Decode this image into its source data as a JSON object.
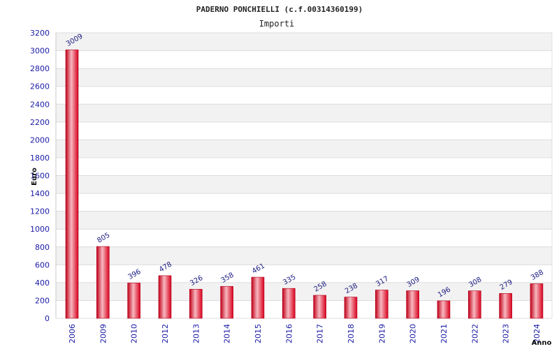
{
  "chart_data": {
    "type": "bar",
    "title": "PADERNO PONCHIELLI (c.f.00314360199)",
    "subtitle": "Importi",
    "ylabel": "Euro",
    "xlabel": "Anno",
    "ylim": [
      0,
      3200
    ],
    "ytick_step": 200,
    "grid": true,
    "categories": [
      "2006",
      "2009",
      "2010",
      "2012",
      "2013",
      "2014",
      "2015",
      "2016",
      "2017",
      "2018",
      "2019",
      "2020",
      "2021",
      "2022",
      "2023",
      "2024"
    ],
    "values": [
      3009,
      805,
      396,
      478,
      326,
      358,
      461,
      335,
      258,
      238,
      317,
      309,
      196,
      308,
      279,
      388
    ],
    "bar_color": "#e8102a",
    "bar_highlight": "#f6b0b8",
    "band_color": "#f2f2f2",
    "label_color": "#1a1aa6"
  }
}
